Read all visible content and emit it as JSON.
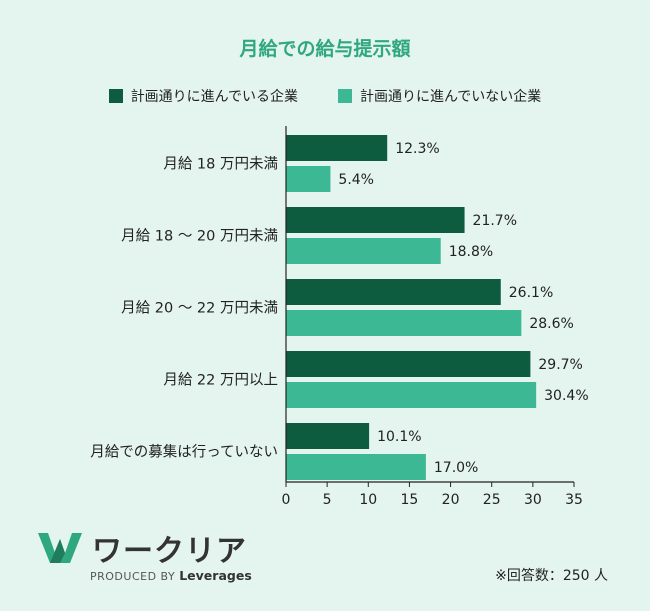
{
  "chart_data": {
    "type": "bar",
    "orientation": "horizontal",
    "title": "月給での給与提示額",
    "categories": [
      "月給 18 万円未満",
      "月給 18 〜 20 万円未満",
      "月給 20 〜 22 万円未満",
      "月給 22 万円以上",
      "月給での募集は行っていない"
    ],
    "series": [
      {
        "name": "計画通りに進んでいる企業",
        "color": "#0d5c40",
        "values": [
          12.3,
          21.7,
          26.1,
          29.7,
          10.1
        ],
        "labels": [
          "12.3%",
          "21.7%",
          "26.1%",
          "29.7%",
          "10.1%"
        ]
      },
      {
        "name": "計画通りに進んでいない企業",
        "color": "#3cb894",
        "values": [
          5.4,
          18.8,
          28.6,
          30.4,
          17.0
        ],
        "labels": [
          "5.4%",
          "18.8%",
          "28.6%",
          "30.4%",
          "17.0%"
        ]
      }
    ],
    "xlim": [
      0,
      35
    ],
    "xticks": [
      "0",
      "5",
      "10",
      "15",
      "20",
      "25",
      "30",
      "35"
    ],
    "legend_position": "top",
    "grid": false
  },
  "brand": {
    "logo_text": "ワークリア",
    "produced_by": "PRODUCED BY",
    "company": "Leverages",
    "accent": "#2fa77f"
  },
  "note": "※回答数：250 人"
}
